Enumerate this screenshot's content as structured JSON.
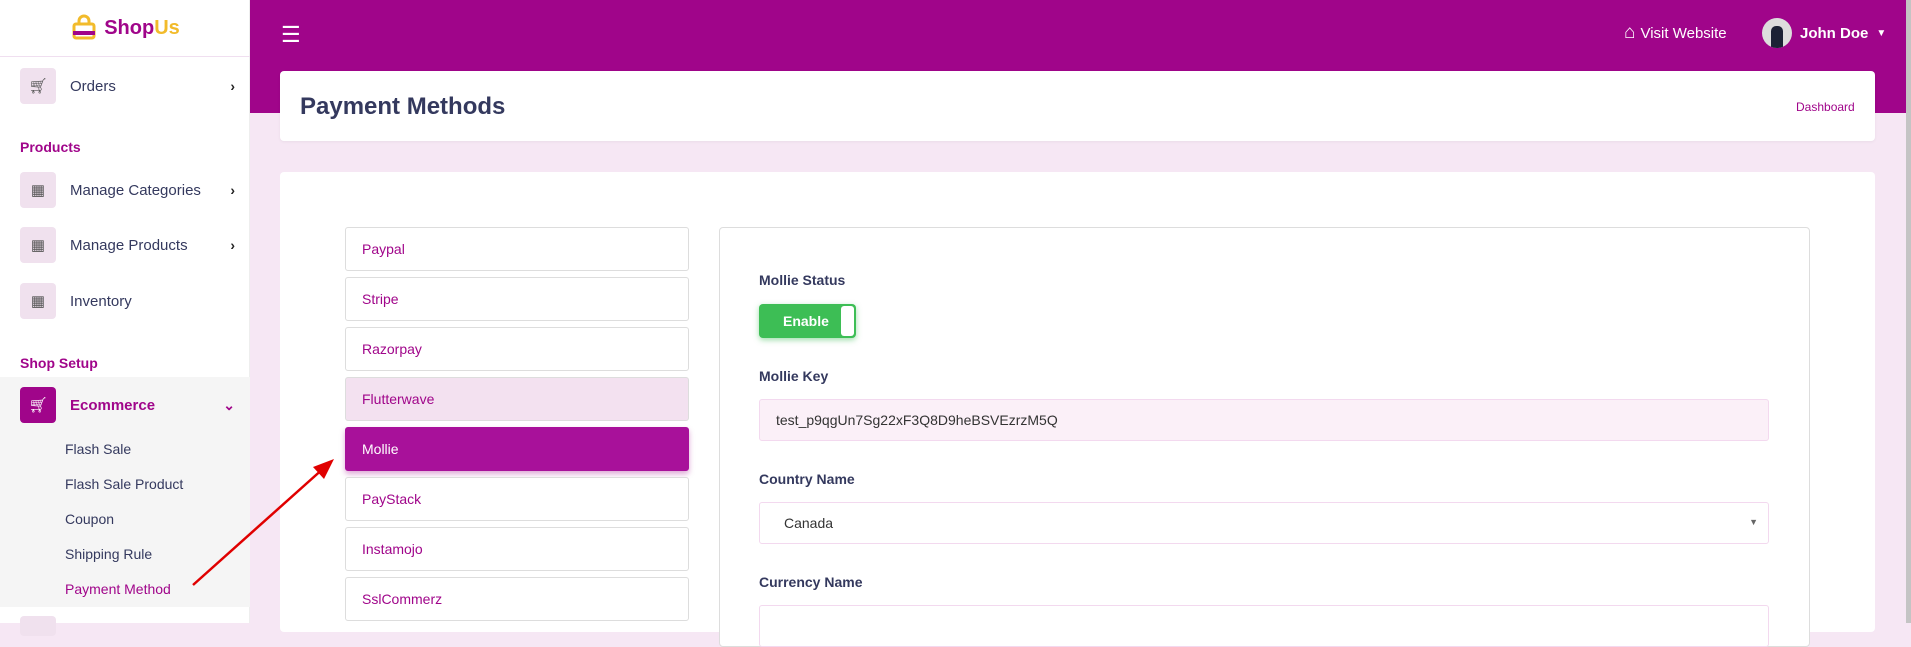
{
  "brand": {
    "shop": "Shop",
    "us": "Us"
  },
  "sidebar": {
    "orders": "Orders",
    "products_heading": "Products",
    "manage_categories": "Manage Categories",
    "manage_products": "Manage Products",
    "inventory": "Inventory",
    "shop_setup_heading": "Shop Setup",
    "ecommerce": "Ecommerce",
    "sub_items": [
      "Flash Sale",
      "Flash Sale Product",
      "Coupon",
      "Shipping Rule",
      "Payment Method"
    ],
    "active_sub": "Payment Method"
  },
  "header": {
    "visit_website": "Visit Website",
    "user_name": "John Doe"
  },
  "page": {
    "title": "Payment Methods",
    "breadcrumb": "Dashboard"
  },
  "methods": [
    "Paypal",
    "Stripe",
    "Razorpay",
    "Flutterwave",
    "Mollie",
    "PayStack",
    "Instamojo",
    "SslCommerz"
  ],
  "active_method": "Mollie",
  "form": {
    "status_label": "Mollie Status",
    "toggle_label": "Enable",
    "toggle_on": true,
    "key_label": "Mollie Key",
    "key_value": "test_p9qgUn7Sg22xF3Q8D9heBSVEzrzM5Q",
    "country_label": "Country Name",
    "country_value": "Canada",
    "currency_label": "Currency Name"
  },
  "colors": {
    "brand": "#a0058a",
    "accent_yellow": "#f2bb2b",
    "toggle_green": "#3dbe55",
    "annotation_arrow": "#e00000"
  }
}
